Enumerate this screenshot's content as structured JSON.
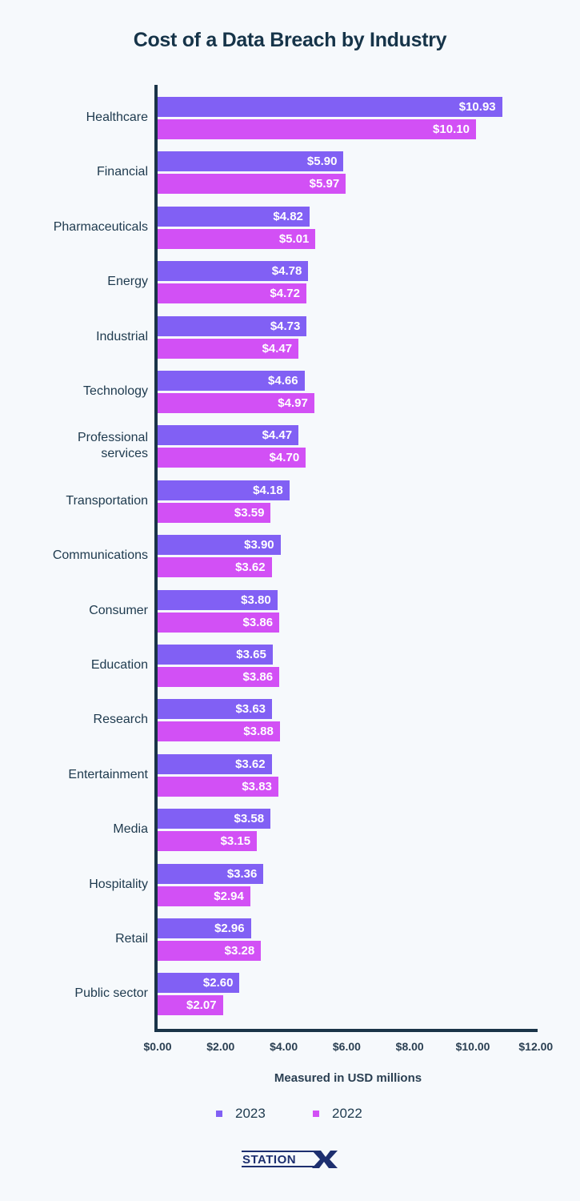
{
  "title": "Cost of a Data Breach by Industry",
  "xlabel": "Measured in USD millions",
  "ticks": [
    "$0.00",
    "$2.00",
    "$4.00",
    "$6.00",
    "$8.00",
    "$10.00",
    "$12.00"
  ],
  "legend": [
    {
      "label": "2023",
      "color": "#8160f4"
    },
    {
      "label": "2022",
      "color": "#d250f5"
    }
  ],
  "brand": "STATIONX",
  "chart_data": {
    "type": "bar",
    "orientation": "horizontal",
    "title": "Cost of a Data Breach by Industry",
    "xlabel": "Measured in USD millions",
    "ylabel": "",
    "xlim": [
      0,
      12
    ],
    "tick_labels": [
      "$0.00",
      "$2.00",
      "$4.00",
      "$6.00",
      "$8.00",
      "$10.00",
      "$12.00"
    ],
    "grid": false,
    "legend_position": "bottom",
    "categories": [
      "Healthcare",
      "Financial",
      "Pharmaceuticals",
      "Energy",
      "Industrial",
      "Technology",
      "Professional services",
      "Transportation",
      "Communications",
      "Consumer",
      "Education",
      "Research",
      "Entertainment",
      "Media",
      "Hospitality",
      "Retail",
      "Public sector"
    ],
    "series": [
      {
        "name": "2023",
        "color": "#8160f4",
        "values": [
          10.93,
          5.9,
          4.82,
          4.78,
          4.73,
          4.66,
          4.47,
          4.18,
          3.9,
          3.8,
          3.65,
          3.63,
          3.62,
          3.58,
          3.36,
          2.96,
          2.6
        ]
      },
      {
        "name": "2022",
        "color": "#d250f5",
        "values": [
          10.1,
          5.97,
          5.01,
          4.72,
          4.47,
          4.97,
          4.7,
          3.59,
          3.62,
          3.86,
          3.86,
          3.88,
          3.83,
          3.15,
          2.94,
          3.28,
          2.07
        ]
      }
    ],
    "value_labels": {
      "2023": [
        "$10.93",
        "$5.90",
        "$4.82",
        "$4.78",
        "$4.73",
        "$4.66",
        "$4.47",
        "$4.18",
        "$3.90",
        "$3.80",
        "$3.65",
        "$3.63",
        "$3.62",
        "$3.58",
        "$3.36",
        "$2.96",
        "$2.60"
      ],
      "2022": [
        "$10.10",
        "$5.97",
        "$5.01",
        "$4.72",
        "$4.47",
        "$4.97",
        "$4.70",
        "$3.59",
        "$3.62",
        "$3.86",
        "$3.86",
        "$3.88",
        "$3.83",
        "$3.15",
        "$2.94",
        "$3.28",
        "$2.07"
      ]
    }
  }
}
